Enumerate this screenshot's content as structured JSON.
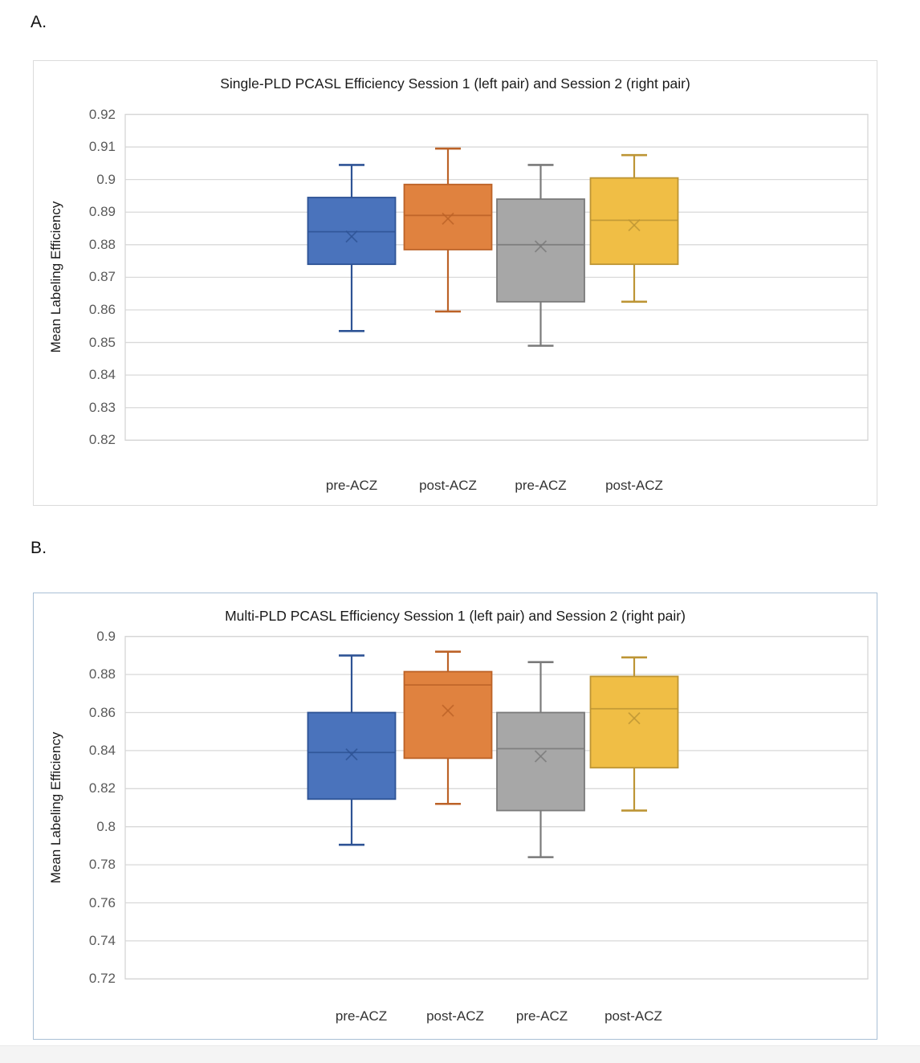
{
  "colors": {
    "blue": {
      "fill": "#4A73BC",
      "stroke": "#2E5395"
    },
    "orange": {
      "fill": "#E0823F",
      "stroke": "#BC6227"
    },
    "gray": {
      "fill": "#A7A7A7",
      "stroke": "#7A7A7A"
    },
    "yellow": {
      "fill": "#F0BE45",
      "stroke": "#BD9535"
    },
    "gridline": "#D9D9D9",
    "plot_border": "#D6D6D6",
    "panel_a_border": "#DBDBDB",
    "panel_b_border": "#A9C0D6",
    "y_tick_text": "#595959",
    "x_label_text": "#333333"
  },
  "chart_data": [
    {
      "type": "box",
      "panel_label": "A.",
      "title": "Single-PLD PCASL Efficiency Session 1 (left pair) and Session 2 (right pair)",
      "ylabel": "Mean Labeling Efficiency",
      "ylim": [
        0.82,
        0.92
      ],
      "grid": true,
      "ytick_values": [
        0.92,
        0.91,
        0.9,
        0.89,
        0.88,
        0.87,
        0.86,
        0.85,
        0.84,
        0.83,
        0.82
      ],
      "ytick_labels": [
        "0.92",
        "0.91",
        "0.9",
        "0.89",
        "0.88",
        "0.87",
        "0.86",
        "0.85",
        "0.84",
        "0.83",
        "0.82"
      ],
      "categories": [
        "pre-ACZ",
        "post-ACZ",
        "pre-ACZ",
        "post-ACZ"
      ],
      "series": [
        {
          "category": "pre-ACZ",
          "pair": "Session 1",
          "color_name": "blue",
          "whisker_low": 0.8535,
          "q1": 0.874,
          "median": 0.884,
          "mean": 0.8825,
          "q3": 0.8945,
          "whisker_high": 0.9045
        },
        {
          "category": "post-ACZ",
          "pair": "Session 1",
          "color_name": "orange",
          "whisker_low": 0.8595,
          "q1": 0.8785,
          "median": 0.889,
          "mean": 0.888,
          "q3": 0.8985,
          "whisker_high": 0.9095
        },
        {
          "category": "pre-ACZ",
          "pair": "Session 2",
          "color_name": "gray",
          "whisker_low": 0.849,
          "q1": 0.8625,
          "median": 0.88,
          "mean": 0.8795,
          "q3": 0.894,
          "whisker_high": 0.9045
        },
        {
          "category": "post-ACZ",
          "pair": "Session 2",
          "color_name": "yellow",
          "whisker_low": 0.8625,
          "q1": 0.874,
          "median": 0.8875,
          "mean": 0.886,
          "q3": 0.9005,
          "whisker_high": 0.9075
        }
      ]
    },
    {
      "type": "box",
      "panel_label": "B.",
      "title": "Multi-PLD PCASL Efficiency Session 1 (left pair) and Session 2 (right pair)",
      "ylabel": "Mean Labeling Efficiency",
      "ylim": [
        0.72,
        0.9
      ],
      "grid": true,
      "ytick_values": [
        0.9,
        0.88,
        0.86,
        0.84,
        0.82,
        0.8,
        0.78,
        0.76,
        0.74,
        0.72
      ],
      "ytick_labels": [
        "0.9",
        "0.88",
        "0.86",
        "0.84",
        "0.82",
        "0.8",
        "0.78",
        "0.76",
        "0.74",
        "0.72"
      ],
      "categories": [
        "pre-ACZ",
        "post-ACZ",
        "pre-ACZ",
        "post-ACZ"
      ],
      "series": [
        {
          "category": "pre-ACZ",
          "pair": "Session 1",
          "color_name": "blue",
          "whisker_low": 0.7905,
          "q1": 0.8145,
          "median": 0.839,
          "mean": 0.838,
          "q3": 0.86,
          "whisker_high": 0.89
        },
        {
          "category": "post-ACZ",
          "pair": "Session 1",
          "color_name": "orange",
          "whisker_low": 0.812,
          "q1": 0.836,
          "median": 0.8745,
          "mean": 0.861,
          "q3": 0.8815,
          "whisker_high": 0.892
        },
        {
          "category": "pre-ACZ",
          "pair": "Session 2",
          "color_name": "gray",
          "whisker_low": 0.784,
          "q1": 0.8085,
          "median": 0.841,
          "mean": 0.837,
          "q3": 0.86,
          "whisker_high": 0.8865
        },
        {
          "category": "post-ACZ",
          "pair": "Session 2",
          "color_name": "yellow",
          "whisker_low": 0.8085,
          "q1": 0.831,
          "median": 0.862,
          "mean": 0.857,
          "q3": 0.879,
          "whisker_high": 0.889
        }
      ]
    }
  ]
}
